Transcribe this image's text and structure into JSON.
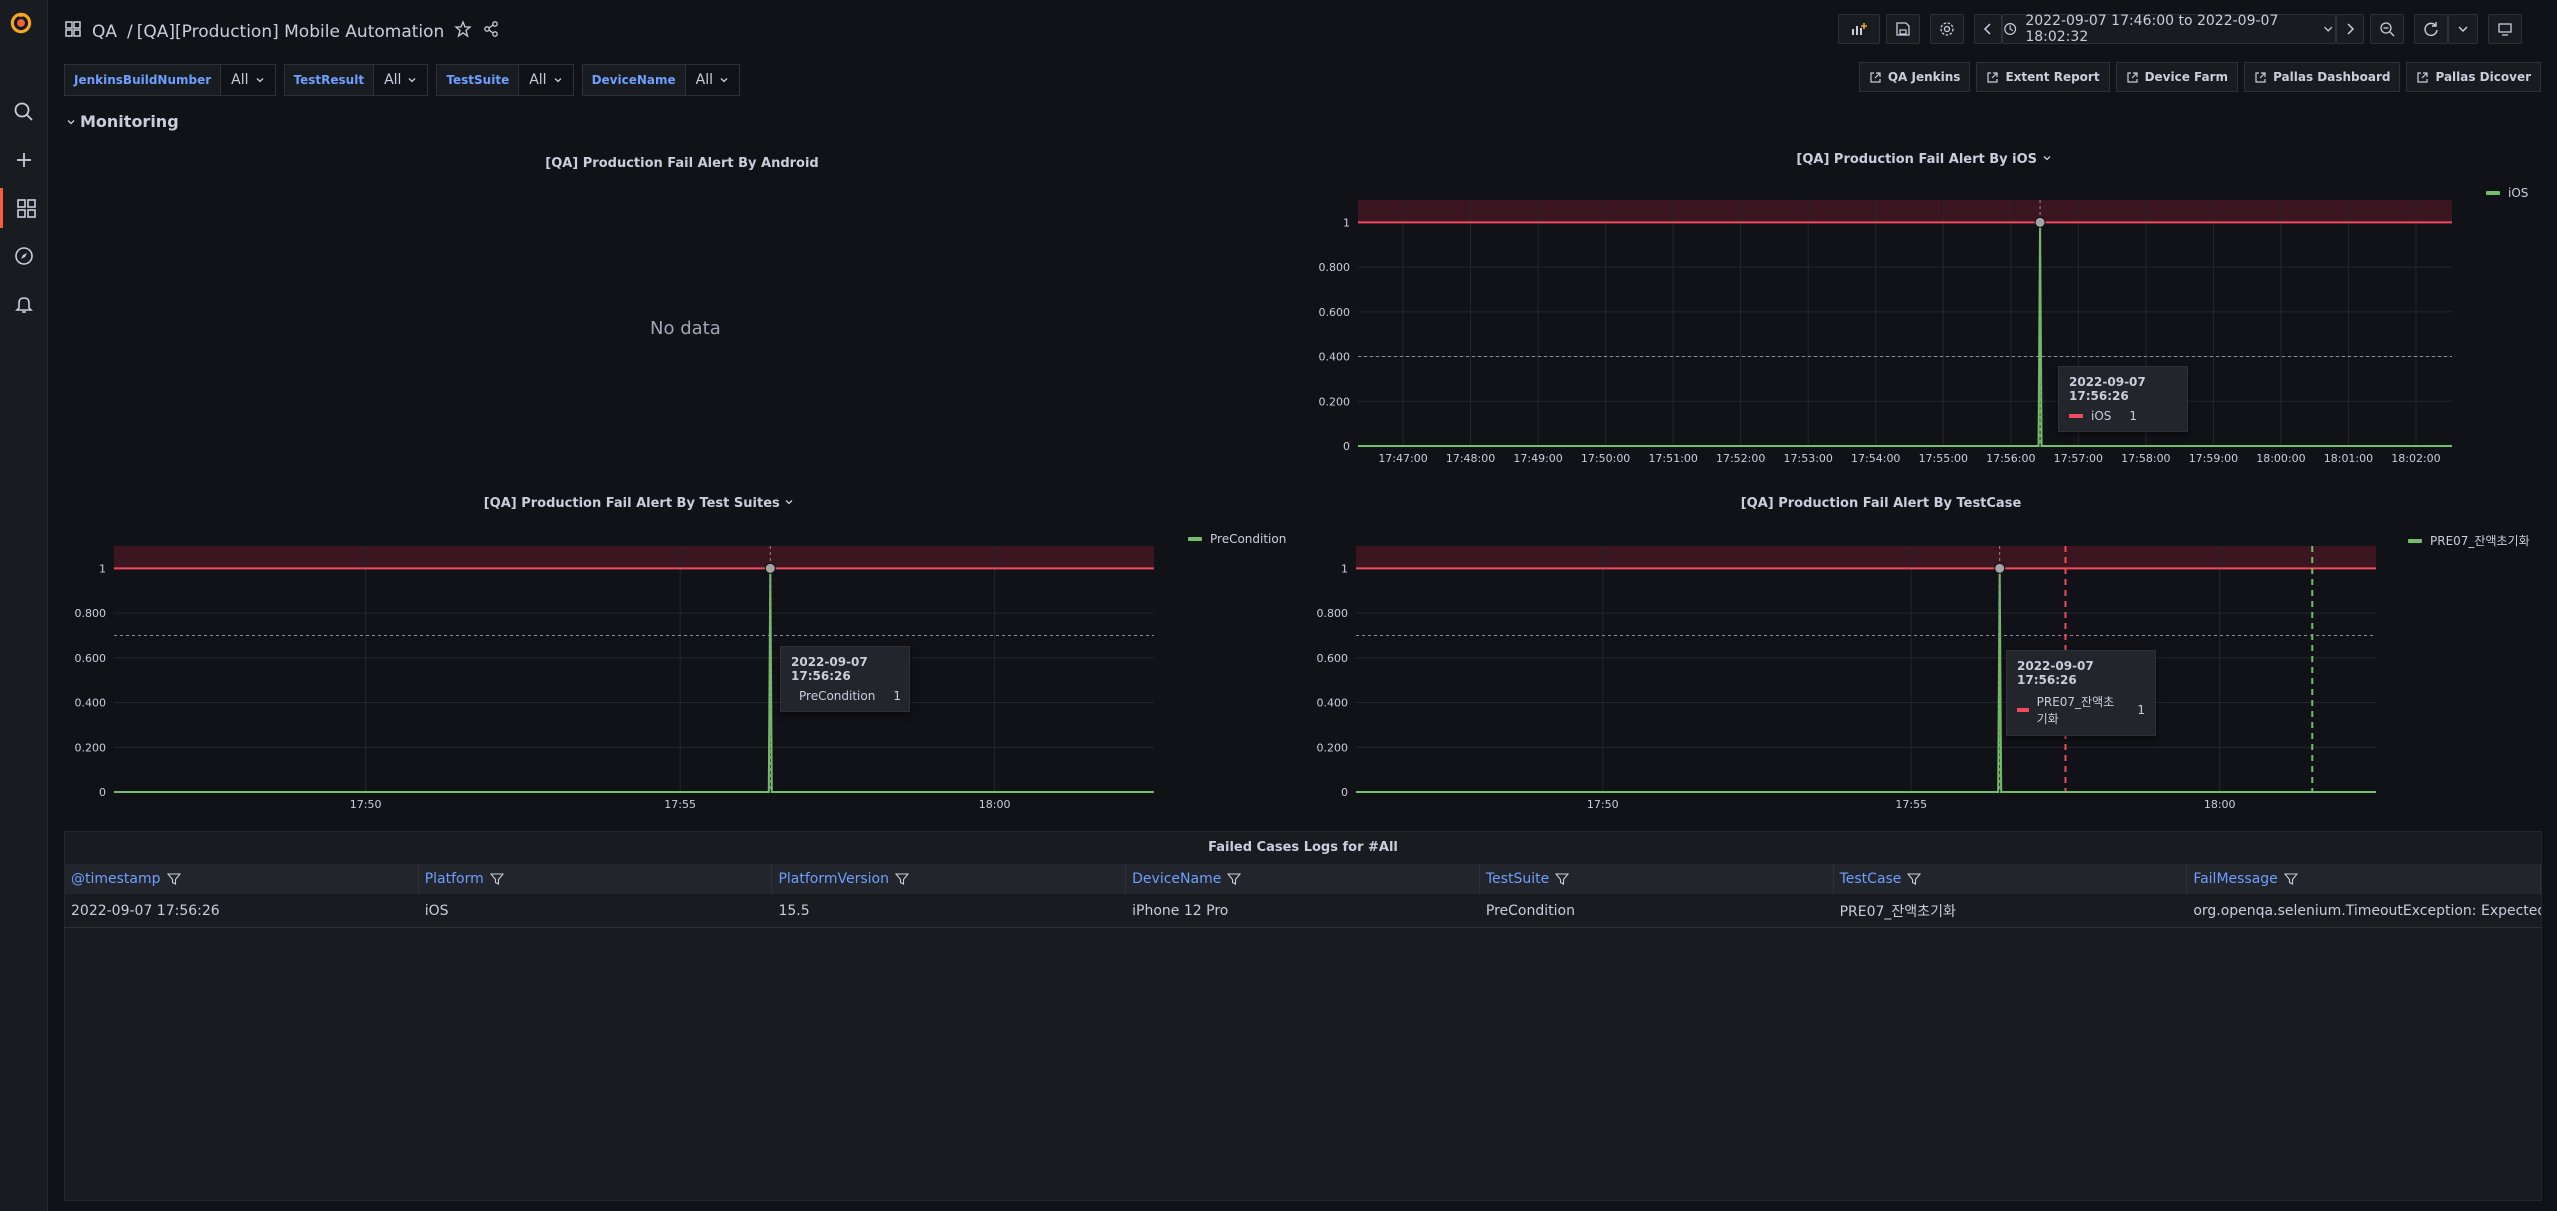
{
  "breadcrumb": {
    "folder": "QA",
    "separator": "/",
    "title": "[QA][Production] Mobile Automation"
  },
  "time_range": {
    "label": "2022-09-07 17:46:00 to 2022-09-07 18:02:32"
  },
  "variables": [
    {
      "name": "JenkinsBuildNumber",
      "value": "All"
    },
    {
      "name": "TestResult",
      "value": "All"
    },
    {
      "name": "TestSuite",
      "value": "All"
    },
    {
      "name": "DeviceName",
      "value": "All"
    }
  ],
  "links": [
    "QA Jenkins",
    "Extent Report",
    "Device Farm",
    "Pallas Dashboard",
    "Pallas Dicover"
  ],
  "row_title": "Monitoring",
  "colors": {
    "threshold_fill": "#3b1520",
    "threshold_line": "#f2495c",
    "series": "#73bf69",
    "grid": "#24262c",
    "accent": "#6e9fff"
  },
  "panels": {
    "android": {
      "title": "[QA] Production Fail Alert By Android",
      "no_data": "No data"
    },
    "ios": {
      "title": "[QA] Production Fail Alert By iOS",
      "legend": "iOS",
      "tooltip": {
        "time": "2022-09-07 17:56:26",
        "series": "iOS",
        "value": "1"
      }
    },
    "suites": {
      "title": "[QA] Production Fail Alert By Test Suites",
      "legend": "PreCondition",
      "tooltip": {
        "time": "2022-09-07 17:56:26",
        "series": "PreCondition",
        "value": "1"
      }
    },
    "testcase": {
      "title": "[QA] Production Fail Alert By TestCase",
      "legend": "PRE07_잔액초기화",
      "tooltip": {
        "time": "2022-09-07 17:56:26",
        "series": "PRE07_잔액초기화",
        "value": "1"
      }
    }
  },
  "chart_data": [
    {
      "type": "line",
      "title": "[QA] Production Fail Alert By iOS",
      "x_ticks": [
        "17:47:00",
        "17:48:00",
        "17:49:00",
        "17:50:00",
        "17:51:00",
        "17:52:00",
        "17:53:00",
        "17:54:00",
        "17:55:00",
        "17:56:00",
        "17:57:00",
        "17:58:00",
        "17:59:00",
        "18:00:00",
        "18:01:00",
        "18:02:00"
      ],
      "y_ticks": [
        "0",
        "0.200",
        "0.400",
        "0.600",
        "0.800",
        "1"
      ],
      "ylim": [
        0,
        1.1
      ],
      "series": [
        {
          "name": "iOS",
          "points": [
            {
              "x": "17:56:26",
              "y": 1
            }
          ]
        }
      ],
      "threshold": 1,
      "dashed_level": 0.4
    },
    {
      "type": "line",
      "title": "[QA] Production Fail Alert By Test Suites",
      "x_ticks": [
        "17:50",
        "17:55",
        "18:00"
      ],
      "y_ticks": [
        "0",
        "0.200",
        "0.400",
        "0.600",
        "0.800",
        "1"
      ],
      "ylim": [
        0,
        1.1
      ],
      "series": [
        {
          "name": "PreCondition",
          "points": [
            {
              "x": "17:56:26",
              "y": 1
            }
          ]
        }
      ],
      "threshold": 1,
      "dashed_level": 0.7
    },
    {
      "type": "line",
      "title": "[QA] Production Fail Alert By TestCase",
      "x_ticks": [
        "17:50",
        "17:55",
        "18:00"
      ],
      "y_ticks": [
        "0",
        "0.200",
        "0.400",
        "0.600",
        "0.800",
        "1"
      ],
      "ylim": [
        0,
        1.1
      ],
      "series": [
        {
          "name": "PRE07_잔액초기화",
          "points": [
            {
              "x": "17:56:26",
              "y": 1
            }
          ]
        }
      ],
      "threshold": 1,
      "dashed_level": 0.7
    }
  ],
  "table": {
    "title": "Failed Cases Logs for #All",
    "columns": [
      "@timestamp",
      "Platform",
      "PlatformVersion",
      "DeviceName",
      "TestSuite",
      "TestCase",
      "FailMessage"
    ],
    "rows": [
      [
        "2022-09-07 17:56:26",
        "iOS",
        "15.5",
        "iPhone 12 Pro",
        "PreCondition",
        "PRE07_잔액초기화",
        "org.openqa.selenium.TimeoutException: Expected ..."
      ]
    ]
  }
}
